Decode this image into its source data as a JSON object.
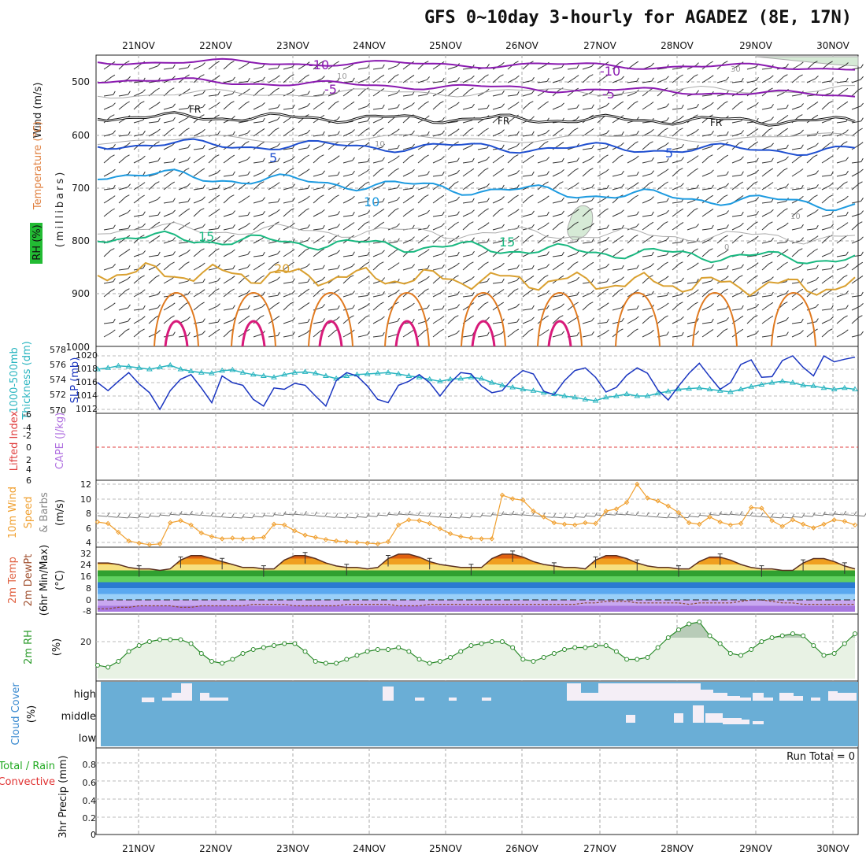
{
  "title": "GFS 0~10day 3-hourly for AGADEZ (8E, 17N)",
  "colors": {
    "grid": "#999999",
    "purple": "#8a1ab0",
    "blue": "#1f4fd0",
    "lightblue": "#1e9be0",
    "green": "#19b880",
    "gold": "#d9a030",
    "orange": "#e07a20",
    "magenta": "#d81a7a",
    "cyan": "#2ab5c0",
    "slp": "#1a35c0",
    "wind10": "#f0a030",
    "cloud": "#6aaed6",
    "rhfill": "#e8f2e4"
  },
  "x_axis": {
    "tick_labels": [
      "21NOV",
      "22NOV",
      "23NOV",
      "24NOV",
      "25NOV",
      "26NOV",
      "27NOV",
      "28NOV",
      "29NOV",
      "30NOV"
    ]
  },
  "panels": {
    "upper": {
      "left_labels": {
        "wind": "Wind (m/s)",
        "temp": "Temperature (°C)",
        "rh": "RH (%)",
        "mb": "(millibars)"
      },
      "y_ticks": [
        "500",
        "600",
        "700",
        "800",
        "900",
        "1000"
      ],
      "contour_labels": {
        "m10a": "-10",
        "m10b": "-10",
        "m5a": "-5",
        "m5b": "-5",
        "fra": "FR",
        "frb": "FR",
        "frc": "FR",
        "p5a": "5",
        "p5b": "5",
        "p10": "10",
        "p15a": "15",
        "p15b": "15",
        "p20": "20",
        "g30": "30",
        "g10a": "10",
        "g10b": "10",
        "g10c": "10",
        "g0": "0"
      }
    },
    "thick": {
      "left_labels": {
        "a": "1000-500mb",
        "b": "Thickness (dm)",
        "c": "SLP (mb)"
      },
      "y_ticks_left": [
        "578",
        "576",
        "574",
        "572",
        "570"
      ],
      "y_ticks_right": [
        "1020",
        "1018",
        "1016",
        "1014",
        "1012"
      ]
    },
    "cape": {
      "left_labels": {
        "li": "Lifted Index",
        "cape": "CAPE (J/kg)"
      },
      "y_ticks": [
        "-6",
        "-4",
        "-2",
        "0",
        "2",
        "4",
        "6"
      ]
    },
    "wind10": {
      "left_labels": {
        "a": "10m Wind",
        "b": "Speed",
        "c": "& Barbs",
        "unit": "(m/s)"
      },
      "y_ticks": [
        "12",
        "10",
        "8",
        "6",
        "4"
      ]
    },
    "temp2m": {
      "left_labels": {
        "a": "2m Temp",
        "b": "2m DewPt",
        "c": "(6hr Min/Max)",
        "unit": "(°C)"
      },
      "y_ticks": [
        "32",
        "24",
        "16",
        "8",
        "0",
        "-8"
      ]
    },
    "rh2m": {
      "left_labels": {
        "a": "2m RH",
        "unit": "(%)"
      },
      "y_ticks": [
        "20"
      ]
    },
    "cloud": {
      "left_labels": {
        "a": "Cloud Cover",
        "unit": "(%)"
      },
      "levels": [
        "high",
        "middle",
        "low"
      ]
    },
    "precip": {
      "left_labels": {
        "a": "Total / Rain",
        "b": "Convective",
        "c": "3hr Precip (mm)"
      },
      "y_ticks": [
        "0.8",
        "0.6",
        "0.4",
        "0.2",
        "0"
      ],
      "run_total": "Run Total = 0"
    }
  },
  "chart_data": [
    {
      "type": "line",
      "title": "1000-500mb Thickness (dm) / SLP (mb)",
      "x": "3-hourly steps, 21NOV to 30NOV",
      "series": [
        {
          "name": "1000-500mb Thickness (dm)",
          "values": [
            576.0,
            576.2,
            576.5,
            576.4,
            576.2,
            576.0,
            576.3,
            576.6,
            576.0,
            575.7,
            575.5,
            575.4,
            575.8,
            575.9,
            575.5,
            575.2,
            575.0,
            574.8,
            575.2,
            575.5,
            575.6,
            575.4,
            575.0,
            574.6,
            575.0,
            575.2,
            575.3,
            575.4,
            575.5,
            575.3,
            575.0,
            574.8,
            574.5,
            574.2,
            574.5,
            574.6,
            574.8,
            574.6,
            574.0,
            573.6,
            573.3,
            573.0,
            572.8,
            572.5,
            572.3,
            572.0,
            571.8,
            571.5,
            571.3,
            571.8,
            572.0,
            572.3,
            572.0,
            572.0,
            572.4,
            572.7,
            573.0,
            573.1,
            573.2,
            573.0,
            572.8,
            572.6,
            573.0,
            573.4,
            573.7,
            574.0,
            574.2,
            574.0,
            573.6,
            573.5,
            573.2,
            573.0,
            573.2,
            573.0
          ]
        },
        {
          "name": "SLP (mb)",
          "values": [
            1016.0,
            1014.8,
            1016.2,
            1017.5,
            1015.8,
            1014.5,
            1012.0,
            1014.8,
            1016.5,
            1017.2,
            1015.2,
            1013.0,
            1017.0,
            1016.0,
            1015.6,
            1013.5,
            1012.5,
            1015.2,
            1015.0,
            1015.9,
            1015.6,
            1014.0,
            1012.5,
            1016.3,
            1017.5,
            1017.0,
            1015.5,
            1013.5,
            1013.0,
            1015.6,
            1016.2,
            1017.2,
            1016.0,
            1014.0,
            1016.0,
            1017.5,
            1017.3,
            1015.5,
            1014.5,
            1014.8,
            1016.6,
            1017.8,
            1017.3,
            1014.7,
            1014.2,
            1016.3,
            1017.8,
            1018.2,
            1016.8,
            1014.6,
            1015.3,
            1017.1,
            1018.2,
            1017.4,
            1014.9,
            1013.4,
            1015.5,
            1017.4,
            1018.9,
            1016.9,
            1015.0,
            1016.0,
            1018.7,
            1019.4,
            1016.8,
            1016.9,
            1019.3,
            1020.0,
            1018.3,
            1017.0,
            1020.0,
            1019.1,
            1019.5,
            1019.8
          ]
        }
      ],
      "ylabel": "Thickness (dm) / SLP (mb)"
    },
    {
      "type": "line",
      "title": "10m Wind Speed",
      "ylabel": "m/s",
      "ylim": [
        3.5,
        12.5
      ],
      "series": [
        {
          "name": "10m Wind Speed",
          "values": [
            6.8,
            6.6,
            5.4,
            4.2,
            3.9,
            3.7,
            3.8,
            6.7,
            7.0,
            6.4,
            5.3,
            4.8,
            4.5,
            4.6,
            4.5,
            4.6,
            4.7,
            6.5,
            6.4,
            5.6,
            5.0,
            4.7,
            4.4,
            4.2,
            4.1,
            4.0,
            3.9,
            3.8,
            4.1,
            6.4,
            7.1,
            7.0,
            6.6,
            5.9,
            5.2,
            4.8,
            4.6,
            4.5,
            4.5,
            10.5,
            10.0,
            9.8,
            8.3,
            7.5,
            6.7,
            6.5,
            6.4,
            6.7,
            6.6,
            8.3,
            8.6,
            9.5,
            12.0,
            10.1,
            9.7,
            9.0,
            8.1,
            6.7,
            6.5,
            7.5,
            6.8,
            6.4,
            6.6,
            8.8,
            8.7,
            7.0,
            6.2,
            7.1,
            6.5,
            6.0,
            6.5,
            7.1,
            6.9,
            6.4
          ]
        }
      ]
    },
    {
      "type": "area",
      "title": "2m Temp / 2m DewPt (6hr Min/Max)",
      "ylabel": "°C",
      "ylim": [
        -10,
        34
      ],
      "series": [
        {
          "name": "2m Temp",
          "values": [
            25,
            25,
            24,
            22,
            21,
            21,
            20,
            21,
            27,
            30,
            30,
            28,
            26,
            24,
            22,
            22,
            21,
            21,
            27,
            30,
            30,
            28,
            25,
            23,
            22,
            22,
            21,
            22,
            28,
            31,
            31,
            29,
            26,
            24,
            23,
            22,
            22,
            22,
            28,
            31,
            31,
            29,
            26,
            24,
            23,
            22,
            22,
            21,
            27,
            30,
            30,
            28,
            25,
            23,
            22,
            22,
            21,
            21,
            26,
            29,
            29,
            27,
            24,
            22,
            21,
            21,
            20,
            20,
            25,
            28,
            28,
            26,
            23,
            21
          ]
        },
        {
          "name": "2m DewPt",
          "values": [
            -6,
            -6,
            -5,
            -5,
            -4,
            -4,
            -4,
            -4,
            -5,
            -5,
            -4,
            -4,
            -4,
            -4,
            -4,
            -3,
            -3,
            -3,
            -3,
            -4,
            -4,
            -4,
            -4,
            -4,
            -3,
            -3,
            -3,
            -3,
            -3,
            -4,
            -4,
            -4,
            -3,
            -3,
            -3,
            -3,
            -3,
            -3,
            -3,
            -3,
            -3,
            -3,
            -3,
            -3,
            -3,
            -3,
            -3,
            -2,
            -2,
            -1,
            -1,
            -1,
            -2,
            -2,
            -2,
            -2,
            -2,
            -3,
            -2,
            -2,
            -2,
            -2,
            -1,
            0,
            0,
            -1,
            -2,
            -2,
            -3,
            -3,
            -3,
            -3,
            -3,
            -3
          ]
        }
      ]
    },
    {
      "type": "area",
      "title": "2m RH",
      "ylabel": "%",
      "ylim": [
        0,
        36
      ],
      "series": [
        {
          "name": "2m RH",
          "values": [
            6,
            5,
            8,
            13,
            16,
            18,
            19,
            19,
            19,
            17,
            12,
            8,
            7,
            9,
            12,
            14,
            15,
            16,
            17,
            17,
            13,
            8,
            7,
            7,
            9,
            11,
            13,
            14,
            14,
            15,
            13,
            9,
            7,
            8,
            10,
            13,
            16,
            17,
            18,
            18,
            15,
            9,
            8,
            10,
            12,
            14,
            15,
            15,
            16,
            16,
            13,
            9,
            9,
            10,
            15,
            20,
            24,
            27,
            28,
            21,
            17,
            12,
            11,
            14,
            18,
            20,
            21,
            22,
            21,
            16,
            11,
            12,
            17,
            22
          ]
        }
      ]
    }
  ]
}
